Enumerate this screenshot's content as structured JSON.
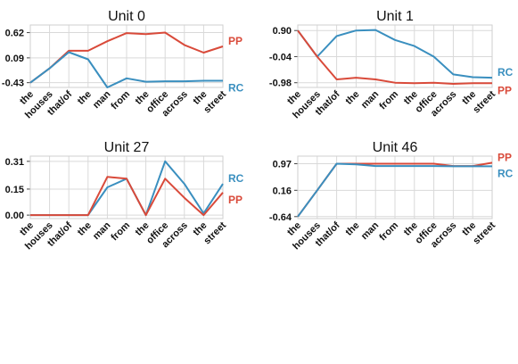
{
  "colors": {
    "PP": "#d94a3a",
    "RC": "#3a8fbf"
  },
  "chart_data": [
    {
      "type": "line",
      "title": "Unit 0",
      "categories": [
        "the",
        "houses",
        "that/of",
        "the",
        "man",
        "from",
        "the",
        "office",
        "across",
        "the",
        "street"
      ],
      "yticks": [
        "0.62",
        "0.09",
        "-0.43"
      ],
      "ytick_values": [
        0.62,
        0.09,
        -0.43
      ],
      "ylim": [
        -0.53,
        0.78
      ],
      "series": [
        {
          "name": "PP",
          "values": [
            -0.43,
            -0.13,
            0.24,
            0.24,
            0.44,
            0.61,
            0.59,
            0.62,
            0.36,
            0.2,
            0.33
          ]
        },
        {
          "name": "RC",
          "values": [
            -0.43,
            -0.13,
            0.21,
            0.06,
            -0.53,
            -0.34,
            -0.41,
            -0.4,
            -0.4,
            -0.39,
            -0.39
          ]
        }
      ]
    },
    {
      "type": "line",
      "title": "Unit 1",
      "categories": [
        "the",
        "houses",
        "that/of",
        "the",
        "man",
        "from",
        "the",
        "office",
        "across",
        "the",
        "street"
      ],
      "yticks": [
        "0.90",
        "-0.04",
        "-0.98"
      ],
      "ytick_values": [
        0.9,
        -0.04,
        -0.98
      ],
      "ylim": [
        -1.15,
        1.1
      ],
      "series": [
        {
          "name": "RC",
          "values": [
            0.9,
            -0.04,
            0.7,
            0.9,
            0.92,
            0.56,
            0.34,
            -0.04,
            -0.68,
            -0.78,
            -0.8
          ]
        },
        {
          "name": "PP",
          "values": [
            0.9,
            -0.04,
            -0.86,
            -0.8,
            -0.86,
            -0.98,
            -1.0,
            -0.98,
            -1.02,
            -1.0,
            -1.0
          ]
        }
      ]
    },
    {
      "type": "line",
      "title": "Unit 27",
      "categories": [
        "the",
        "houses",
        "that/of",
        "the",
        "man",
        "from",
        "the",
        "office",
        "across",
        "the",
        "street"
      ],
      "yticks": [
        "0.31",
        "0.15",
        "0.00"
      ],
      "ytick_values": [
        0.31,
        0.15,
        0.0
      ],
      "ylim": [
        -0.02,
        0.34
      ],
      "series": [
        {
          "name": "RC",
          "values": [
            0.0,
            0.0,
            0.0,
            0.0,
            0.16,
            0.21,
            0.0,
            0.31,
            0.18,
            0.01,
            0.18
          ]
        },
        {
          "name": "PP",
          "values": [
            0.0,
            0.0,
            0.0,
            0.0,
            0.22,
            0.21,
            0.0,
            0.21,
            0.1,
            0.0,
            0.13
          ]
        }
      ]
    },
    {
      "type": "line",
      "title": "Unit 46",
      "categories": [
        "the",
        "houses",
        "that/of",
        "the",
        "man",
        "from",
        "the",
        "office",
        "across",
        "the",
        "street"
      ],
      "yticks": [
        "0.97",
        "0.16",
        "-0.64"
      ],
      "ytick_values": [
        0.97,
        0.16,
        -0.64
      ],
      "ylim": [
        -0.7,
        1.2
      ],
      "series": [
        {
          "name": "PP",
          "values": [
            -0.64,
            0.16,
            0.97,
            0.97,
            0.97,
            0.97,
            0.97,
            0.97,
            0.9,
            0.9,
            1.0
          ]
        },
        {
          "name": "RC",
          "values": [
            -0.64,
            0.16,
            0.97,
            0.95,
            0.9,
            0.9,
            0.9,
            0.9,
            0.89,
            0.89,
            0.89
          ]
        }
      ]
    }
  ]
}
